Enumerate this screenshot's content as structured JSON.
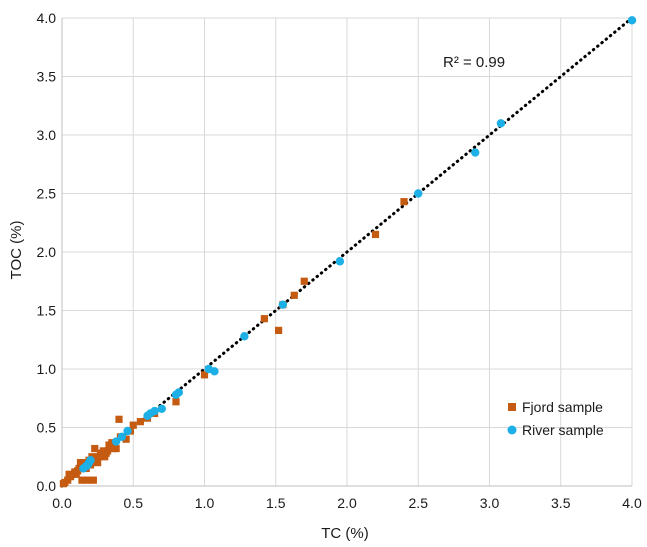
{
  "chart_data": {
    "type": "scatter",
    "title": "",
    "xlabel": "TC (%)",
    "ylabel": "TOC (%)",
    "xlim": [
      0,
      4
    ],
    "ylim": [
      0,
      4
    ],
    "x_ticks": [
      "0.0",
      "0.5",
      "1.0",
      "1.5",
      "2.0",
      "2.5",
      "3.0",
      "3.5",
      "4.0"
    ],
    "y_ticks": [
      "0.0",
      "0.5",
      "1.0",
      "1.5",
      "2.0",
      "2.5",
      "3.0",
      "3.5",
      "4.0"
    ],
    "grid": true,
    "legend_position": "bottom-right",
    "annotation": "R² = 0.99",
    "trendline": {
      "style": "dotted",
      "color": "#000000",
      "x": [
        0,
        4.0
      ],
      "y": [
        0,
        4.0
      ]
    },
    "series": [
      {
        "name": "Fjord sample",
        "marker": "square",
        "color": "#c55a11",
        "x": [
          0.01,
          0.02,
          0.04,
          0.05,
          0.06,
          0.08,
          0.09,
          0.1,
          0.11,
          0.12,
          0.13,
          0.14,
          0.15,
          0.16,
          0.17,
          0.18,
          0.19,
          0.2,
          0.21,
          0.22,
          0.23,
          0.24,
          0.25,
          0.26,
          0.27,
          0.28,
          0.29,
          0.3,
          0.31,
          0.32,
          0.33,
          0.35,
          0.36,
          0.38,
          0.4,
          0.41,
          0.45,
          0.48,
          0.5,
          0.55,
          0.6,
          0.65,
          0.8,
          1.0,
          1.42,
          1.52,
          1.55,
          1.63,
          1.7,
          2.2,
          2.4
        ],
        "y": [
          0.02,
          0.03,
          0.05,
          0.1,
          0.08,
          0.1,
          0.12,
          0.1,
          0.13,
          0.15,
          0.2,
          0.05,
          0.18,
          0.2,
          0.15,
          0.05,
          0.22,
          0.18,
          0.25,
          0.05,
          0.32,
          0.22,
          0.2,
          0.25,
          0.28,
          0.27,
          0.3,
          0.25,
          0.28,
          0.3,
          0.35,
          0.37,
          0.32,
          0.32,
          0.57,
          0.42,
          0.4,
          0.47,
          0.52,
          0.55,
          0.58,
          0.62,
          0.72,
          0.95,
          1.43,
          1.33,
          1.55,
          1.63,
          1.75,
          2.15,
          2.43
        ]
      },
      {
        "name": "River sample",
        "marker": "circle",
        "color": "#1cb0e6",
        "x": [
          0.15,
          0.17,
          0.18,
          0.19,
          0.2,
          0.38,
          0.42,
          0.46,
          0.6,
          0.62,
          0.65,
          0.7,
          0.8,
          0.82,
          1.03,
          1.07,
          1.28,
          1.55,
          1.95,
          2.5,
          2.9,
          3.08,
          4.0
        ],
        "y": [
          0.15,
          0.17,
          0.18,
          0.2,
          0.22,
          0.38,
          0.42,
          0.47,
          0.6,
          0.62,
          0.64,
          0.66,
          0.78,
          0.8,
          1.0,
          0.98,
          1.28,
          1.55,
          1.92,
          2.5,
          2.85,
          3.1,
          3.98
        ]
      }
    ]
  }
}
